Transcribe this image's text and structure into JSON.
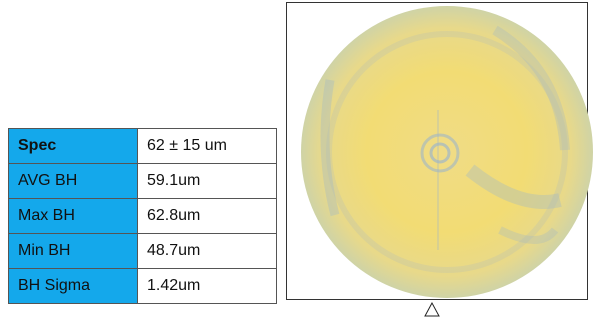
{
  "table": {
    "rows": [
      [
        "Spec",
        "62 ± 15 um"
      ],
      [
        "AVG BH",
        "59.1um"
      ],
      [
        "Max BH",
        "62.8um"
      ],
      [
        "Min BH",
        "48.7um"
      ],
      [
        "BH Sigma",
        "1.42um"
      ]
    ]
  }
}
